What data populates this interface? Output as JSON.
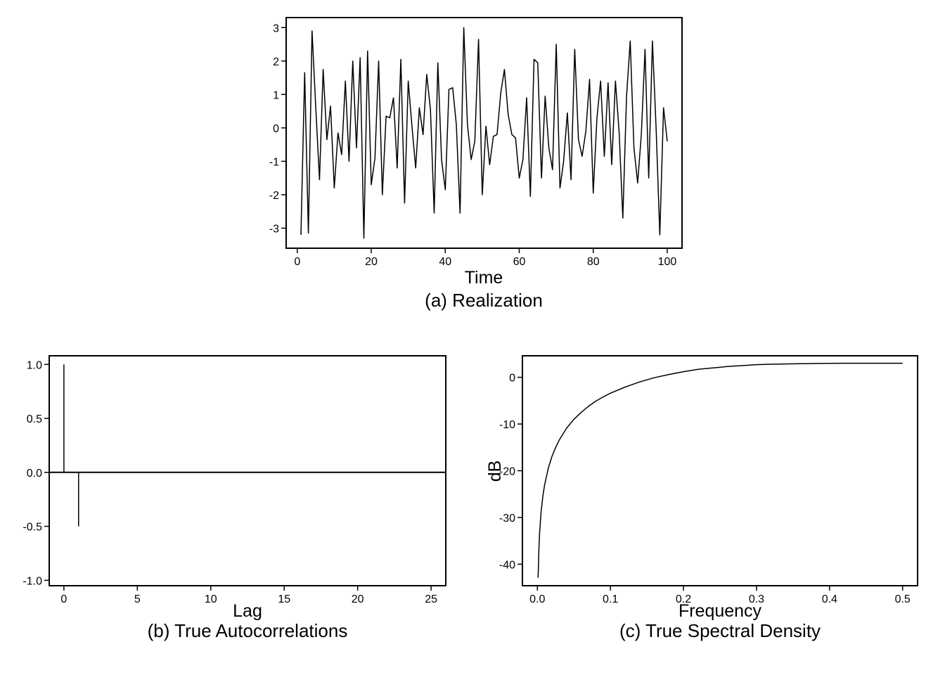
{
  "chart_data": [
    {
      "type": "line",
      "caption": "(a) Realization",
      "xlabel": "Time",
      "ylabel": "",
      "xlim": [
        -3,
        104
      ],
      "ylim": [
        -3.6,
        3.3
      ],
      "xticks": [
        0,
        20,
        40,
        60,
        80,
        100
      ],
      "yticks": [
        -3,
        -2,
        -1,
        0,
        1,
        2,
        3
      ],
      "xtick_labels": [
        "0",
        "20",
        "40",
        "60",
        "80",
        "100"
      ],
      "ytick_labels": [
        "-3",
        "-2",
        "-1",
        "0",
        "1",
        "2",
        "3"
      ],
      "grid": false,
      "x": [
        1,
        2,
        3,
        4,
        5,
        6,
        7,
        8,
        9,
        10,
        11,
        12,
        13,
        14,
        15,
        16,
        17,
        18,
        19,
        20,
        21,
        22,
        23,
        24,
        25,
        26,
        27,
        28,
        29,
        30,
        31,
        32,
        33,
        34,
        35,
        36,
        37,
        38,
        39,
        40,
        41,
        42,
        43,
        44,
        45,
        46,
        47,
        48,
        49,
        50,
        51,
        52,
        53,
        54,
        55,
        56,
        57,
        58,
        59,
        60,
        61,
        62,
        63,
        64,
        65,
        66,
        67,
        68,
        69,
        70,
        71,
        72,
        73,
        74,
        75,
        76,
        77,
        78,
        79,
        80,
        81,
        82,
        83,
        84,
        85,
        86,
        87,
        88,
        89,
        90,
        91,
        92,
        93,
        94,
        95,
        96,
        97,
        98,
        99,
        100
      ],
      "values": [
        -3.2,
        1.65,
        -3.15,
        2.9,
        0.6,
        -1.55,
        1.75,
        -0.35,
        0.65,
        -1.8,
        -0.15,
        -0.8,
        1.4,
        -1.0,
        2.0,
        -0.6,
        2.1,
        -3.3,
        2.3,
        -1.7,
        -0.9,
        2.0,
        -2.0,
        0.35,
        0.3,
        0.9,
        -1.2,
        2.05,
        -2.25,
        1.4,
        0.05,
        -1.2,
        0.6,
        -0.2,
        1.6,
        0.55,
        -2.55,
        1.95,
        -0.95,
        -1.85,
        1.15,
        1.2,
        0.1,
        -2.55,
        3.0,
        0.1,
        -0.95,
        -0.4,
        2.65,
        -2.0,
        0.05,
        -1.1,
        -0.25,
        -0.2,
        1.05,
        1.75,
        0.4,
        -0.2,
        -0.3,
        -1.5,
        -0.95,
        0.9,
        -2.05,
        2.05,
        1.95,
        -1.5,
        0.95,
        -0.6,
        -1.25,
        2.5,
        -1.8,
        -1.0,
        0.45,
        -1.55,
        2.35,
        -0.35,
        -0.85,
        -0.1,
        1.45,
        -1.95,
        0.3,
        1.4,
        -0.85,
        1.35,
        -1.1,
        1.4,
        -0.15,
        -2.7,
        0.95,
        2.6,
        -0.6,
        -1.65,
        -0.2,
        2.35,
        -1.5,
        2.6,
        -0.05,
        -3.2,
        0.6,
        -0.4
      ]
    },
    {
      "type": "bar",
      "caption": "(b) True Autocorrelations",
      "xlabel": "Lag",
      "ylabel": "",
      "xlim": [
        -1.0,
        26.0
      ],
      "ylim": [
        -1.05,
        1.08
      ],
      "xticks": [
        0,
        5,
        10,
        15,
        20,
        25
      ],
      "yticks": [
        -1.0,
        -0.5,
        0.0,
        0.5,
        1.0
      ],
      "xtick_labels": [
        "0",
        "5",
        "10",
        "15",
        "20",
        "25"
      ],
      "ytick_labels": [
        "-1.0",
        "-0.5",
        "0.0",
        "0.5",
        "1.0"
      ],
      "grid": false,
      "x": [
        0,
        1,
        2,
        3,
        4,
        5,
        6,
        7,
        8,
        9,
        10,
        11,
        12,
        13,
        14,
        15,
        16,
        17,
        18,
        19,
        20,
        21,
        22,
        23,
        24,
        25,
        26
      ],
      "values": [
        1.0,
        -0.5,
        0,
        0,
        0,
        0,
        0,
        0,
        0,
        0,
        0,
        0,
        0,
        0,
        0,
        0,
        0,
        0,
        0,
        0,
        0,
        0,
        0,
        0,
        0,
        0,
        0
      ]
    },
    {
      "type": "line",
      "caption": "(c) True Spectral Density",
      "xlabel": "Frequency",
      "ylabel": "dB",
      "xlim": [
        -0.0205,
        0.5205
      ],
      "ylim": [
        -44.6,
        4.6
      ],
      "xticks": [
        0.0,
        0.1,
        0.2,
        0.3,
        0.4,
        0.5
      ],
      "yticks": [
        -40,
        -30,
        -20,
        -10,
        0
      ],
      "xtick_labels": [
        "0.0",
        "0.1",
        "0.2",
        "0.3",
        "0.4",
        "0.5"
      ],
      "ytick_labels": [
        "-40",
        "-30",
        "-20",
        "-10",
        "0"
      ],
      "grid": false,
      "x": [
        0.001,
        0.002,
        0.003,
        0.005,
        0.0075,
        0.01,
        0.015,
        0.02,
        0.025,
        0.03,
        0.04,
        0.05,
        0.06,
        0.07,
        0.08,
        0.09,
        0.1,
        0.12,
        0.14,
        0.16,
        0.18,
        0.2,
        0.22,
        0.24,
        0.26,
        0.28,
        0.3,
        0.32,
        0.34,
        0.36,
        0.38,
        0.4,
        0.42,
        0.44,
        0.46,
        0.48,
        0.5
      ],
      "values": [
        -42.9,
        -36.9,
        -33.4,
        -28.9,
        -25.4,
        -22.9,
        -19.4,
        -16.9,
        -15.0,
        -13.4,
        -10.9,
        -9.0,
        -7.5,
        -6.2,
        -5.1,
        -4.2,
        -3.4,
        -2.1,
        -1.0,
        -0.1,
        0.6,
        1.2,
        1.7,
        2.0,
        2.3,
        2.5,
        2.7,
        2.8,
        2.85,
        2.9,
        2.95,
        2.98,
        3.0,
        3.0,
        3.01,
        3.01,
        3.01
      ]
    }
  ]
}
